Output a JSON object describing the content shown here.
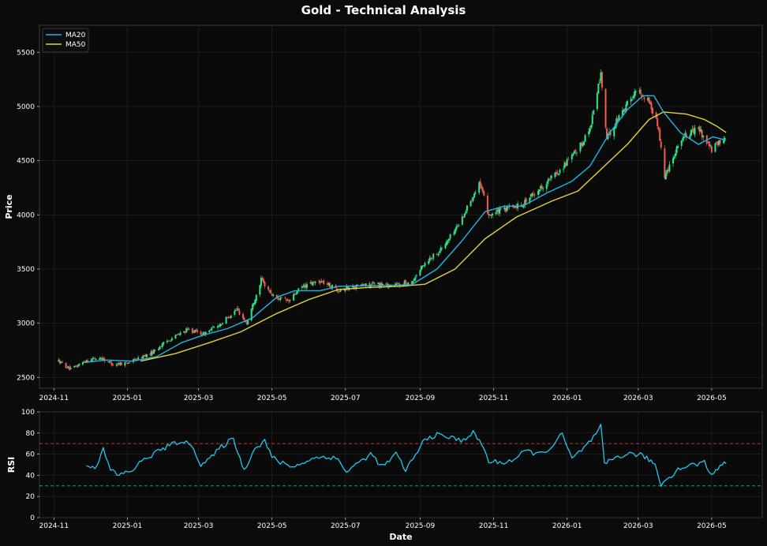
{
  "title": "Gold - Technical Analysis",
  "colors": {
    "background": "#0b0b0b",
    "panel": "#0a0a0a",
    "frame": "#3a3a3a",
    "grid": "#262626",
    "up": "#2ee88a",
    "down": "#f25c54",
    "ma20": "#1fb6e6",
    "ma50": "#e3d33b",
    "rsi": "#1ec8f0",
    "overbought": "#d33a3a",
    "oversold": "#20c070"
  },
  "chart_data": [
    {
      "type": "candlestick",
      "ylabel": "Price",
      "ylim": [
        2400,
        5750
      ],
      "yticks": [
        2500,
        3000,
        3500,
        4000,
        4500,
        5000,
        5500
      ],
      "xlim": [
        "2024-10-20",
        "2026-06-12"
      ],
      "xticks": [
        "2024-11",
        "2025-01",
        "2025-03",
        "2025-05",
        "2025-07",
        "2025-09",
        "2025-11",
        "2026-01",
        "2026-03",
        "2026-05"
      ],
      "legend": {
        "position": "top-left",
        "entries": [
          "MA20",
          "MA50"
        ]
      },
      "grid": true,
      "price_path": [
        [
          "2024-11-05",
          2650
        ],
        [
          "2024-11-15",
          2570
        ],
        [
          "2024-11-28",
          2660
        ],
        [
          "2024-12-10",
          2680
        ],
        [
          "2024-12-20",
          2620
        ],
        [
          "2025-01-03",
          2640
        ],
        [
          "2025-01-20",
          2720
        ],
        [
          "2025-02-05",
          2850
        ],
        [
          "2025-02-20",
          2940
        ],
        [
          "2025-03-05",
          2900
        ],
        [
          "2025-03-20",
          3000
        ],
        [
          "2025-04-02",
          3130
        ],
        [
          "2025-04-10",
          3000
        ],
        [
          "2025-04-22",
          3400
        ],
        [
          "2025-05-02",
          3250
        ],
        [
          "2025-05-15",
          3200
        ],
        [
          "2025-05-25",
          3330
        ],
        [
          "2025-06-10",
          3390
        ],
        [
          "2025-06-25",
          3310
        ],
        [
          "2025-07-10",
          3340
        ],
        [
          "2025-07-25",
          3360
        ],
        [
          "2025-08-10",
          3350
        ],
        [
          "2025-08-25",
          3380
        ],
        [
          "2025-09-05",
          3560
        ],
        [
          "2025-09-20",
          3700
        ],
        [
          "2025-10-05",
          3950
        ],
        [
          "2025-10-20",
          4300
        ],
        [
          "2025-10-28",
          4000
        ],
        [
          "2025-11-10",
          4050
        ],
        [
          "2025-11-25",
          4100
        ],
        [
          "2025-12-10",
          4250
        ],
        [
          "2025-12-25",
          4400
        ],
        [
          "2026-01-10",
          4600
        ],
        [
          "2026-01-20",
          4800
        ],
        [
          "2026-01-29",
          5300
        ],
        [
          "2026-02-03",
          4700
        ],
        [
          "2026-02-15",
          4950
        ],
        [
          "2026-02-28",
          5150
        ],
        [
          "2026-03-10",
          5050
        ],
        [
          "2026-03-18",
          4800
        ],
        [
          "2026-03-23",
          4350
        ],
        [
          "2026-04-05",
          4700
        ],
        [
          "2026-04-20",
          4800
        ],
        [
          "2026-05-01",
          4600
        ],
        [
          "2026-05-12",
          4720
        ]
      ],
      "ma20": [
        [
          "2024-11-28",
          2640
        ],
        [
          "2024-12-15",
          2660
        ],
        [
          "2025-01-05",
          2650
        ],
        [
          "2025-01-25",
          2690
        ],
        [
          "2025-02-15",
          2820
        ],
        [
          "2025-03-05",
          2890
        ],
        [
          "2025-03-25",
          2950
        ],
        [
          "2025-04-15",
          3050
        ],
        [
          "2025-05-05",
          3240
        ],
        [
          "2025-05-20",
          3300
        ],
        [
          "2025-06-10",
          3300
        ],
        [
          "2025-06-25",
          3340
        ],
        [
          "2025-07-15",
          3345
        ],
        [
          "2025-08-10",
          3350
        ],
        [
          "2025-08-25",
          3355
        ],
        [
          "2025-09-15",
          3500
        ],
        [
          "2025-10-05",
          3750
        ],
        [
          "2025-10-25",
          4030
        ],
        [
          "2025-11-10",
          4080
        ],
        [
          "2025-11-25",
          4080
        ],
        [
          "2025-12-15",
          4200
        ],
        [
          "2026-01-05",
          4310
        ],
        [
          "2026-01-20",
          4450
        ],
        [
          "2026-02-05",
          4750
        ],
        [
          "2026-02-20",
          4970
        ],
        [
          "2026-03-05",
          5100
        ],
        [
          "2026-03-14",
          5100
        ],
        [
          "2026-03-22",
          4950
        ],
        [
          "2026-04-05",
          4760
        ],
        [
          "2026-04-20",
          4650
        ],
        [
          "2026-05-02",
          4720
        ],
        [
          "2026-05-13",
          4690
        ]
      ],
      "ma50": [
        [
          "2025-01-12",
          2650
        ],
        [
          "2025-02-10",
          2720
        ],
        [
          "2025-03-10",
          2820
        ],
        [
          "2025-04-05",
          2920
        ],
        [
          "2025-05-05",
          3090
        ],
        [
          "2025-06-01",
          3220
        ],
        [
          "2025-06-25",
          3310
        ],
        [
          "2025-07-20",
          3330
        ],
        [
          "2025-08-15",
          3340
        ],
        [
          "2025-09-05",
          3360
        ],
        [
          "2025-09-30",
          3500
        ],
        [
          "2025-10-25",
          3780
        ],
        [
          "2025-11-20",
          3980
        ],
        [
          "2025-12-20",
          4130
        ],
        [
          "2026-01-10",
          4220
        ],
        [
          "2026-01-30",
          4430
        ],
        [
          "2026-02-20",
          4650
        ],
        [
          "2026-03-10",
          4880
        ],
        [
          "2026-03-22",
          4950
        ],
        [
          "2026-04-10",
          4930
        ],
        [
          "2026-04-25",
          4880
        ],
        [
          "2026-05-05",
          4820
        ],
        [
          "2026-05-13",
          4760
        ]
      ]
    },
    {
      "type": "line",
      "xlabel": "Date",
      "ylabel": "RSI",
      "ylim": [
        0,
        100
      ],
      "yticks": [
        0,
        20,
        40,
        60,
        80,
        100
      ],
      "overbought": 70,
      "oversold": 30,
      "series": [
        {
          "values": [
            [
              "2024-11-28",
              51
            ],
            [
              "2024-12-05",
              47
            ],
            [
              "2024-12-12",
              64
            ],
            [
              "2024-12-18",
              45
            ],
            [
              "2024-12-25",
              40
            ],
            [
              "2025-01-05",
              45
            ],
            [
              "2025-01-15",
              55
            ],
            [
              "2025-01-25",
              62
            ],
            [
              "2025-02-05",
              68
            ],
            [
              "2025-02-15",
              73
            ],
            [
              "2025-02-25",
              66
            ],
            [
              "2025-03-03",
              50
            ],
            [
              "2025-03-12",
              57
            ],
            [
              "2025-03-20",
              67
            ],
            [
              "2025-03-30",
              75
            ],
            [
              "2025-04-08",
              44
            ],
            [
              "2025-04-15",
              63
            ],
            [
              "2025-04-25",
              73
            ],
            [
              "2025-05-01",
              57
            ],
            [
              "2025-05-08",
              52
            ],
            [
              "2025-05-20",
              48
            ],
            [
              "2025-06-01",
              55
            ],
            [
              "2025-06-15",
              58
            ],
            [
              "2025-06-25",
              55
            ],
            [
              "2025-07-02",
              43
            ],
            [
              "2025-07-12",
              52
            ],
            [
              "2025-07-22",
              60
            ],
            [
              "2025-08-01",
              48
            ],
            [
              "2025-08-12",
              60
            ],
            [
              "2025-08-20",
              45
            ],
            [
              "2025-08-30",
              62
            ],
            [
              "2025-09-05",
              75
            ],
            [
              "2025-09-15",
              78
            ],
            [
              "2025-09-25",
              76
            ],
            [
              "2025-10-05",
              73
            ],
            [
              "2025-10-15",
              80
            ],
            [
              "2025-10-22",
              70
            ],
            [
              "2025-10-28",
              53
            ],
            [
              "2025-11-08",
              52
            ],
            [
              "2025-11-18",
              55
            ],
            [
              "2025-11-28",
              63
            ],
            [
              "2025-12-10",
              60
            ],
            [
              "2025-12-20",
              68
            ],
            [
              "2025-12-28",
              79
            ],
            [
              "2026-01-05",
              55
            ],
            [
              "2026-01-15",
              66
            ],
            [
              "2026-01-25",
              78
            ],
            [
              "2026-01-29",
              86
            ],
            [
              "2026-02-01",
              50
            ],
            [
              "2026-02-10",
              57
            ],
            [
              "2026-02-20",
              60
            ],
            [
              "2026-03-01",
              60
            ],
            [
              "2026-03-10",
              55
            ],
            [
              "2026-03-15",
              50
            ],
            [
              "2026-03-20",
              31
            ],
            [
              "2026-03-25",
              37
            ],
            [
              "2026-04-05",
              47
            ],
            [
              "2026-04-15",
              50
            ],
            [
              "2026-04-25",
              52
            ],
            [
              "2026-05-01",
              40
            ],
            [
              "2026-05-08",
              50
            ],
            [
              "2026-05-13",
              51
            ]
          ]
        }
      ]
    }
  ]
}
